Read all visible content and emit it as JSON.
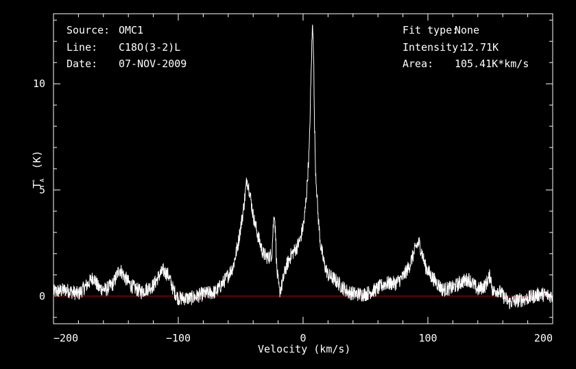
{
  "header_left": {
    "source_label": "Source:",
    "source_value": "OMC1",
    "line_label": "Line:",
    "line_value": "C18O(3-2)L",
    "date_label": "Date:",
    "date_value": "07-NOV-2009"
  },
  "header_right": {
    "fit_label": "Fit type:",
    "fit_value": "None",
    "intensity_label": "Intensity:",
    "intensity_value": "12.71K",
    "area_label": "Area:",
    "area_value": "105.41K*km/s"
  },
  "chart_data": {
    "type": "line",
    "xlabel": "Velocity (km/s)",
    "ylabel_main": "T",
    "ylabel_sub": "A",
    "ylabel_sup": "*",
    "ylabel_unit": "(K)",
    "xlim": [
      -200,
      200
    ],
    "ylim": [
      -1.3,
      13.3
    ],
    "x_ticks": [
      -200,
      -100,
      0,
      100,
      200
    ],
    "x_tick_labels": [
      "−200",
      "−100",
      "0",
      "100",
      "200"
    ],
    "y_ticks": [
      0,
      5,
      10
    ],
    "y_tick_labels": [
      "0",
      "5",
      "10"
    ],
    "grid": false,
    "colors": {
      "background": "#000000",
      "spectrum": "#ffffff",
      "baseline": "#cc0000",
      "frame": "#ffffff"
    },
    "baseline_value": 0,
    "series": [
      {
        "x": [
          -200,
          -190,
          -180,
          -172,
          -168,
          -164,
          -158,
          -152,
          -147,
          -143,
          -138,
          -130,
          -120,
          -115,
          -112,
          -108,
          -104,
          -100,
          -90,
          -80,
          -70,
          -62,
          -56,
          -52,
          -48,
          -45,
          -43,
          -40,
          -36,
          -32,
          -28,
          -25,
          -24,
          -23,
          -22,
          -21,
          -19,
          -17,
          -14,
          -10,
          -5,
          -2,
          1,
          3,
          5,
          6,
          7,
          7.5,
          8,
          8.5,
          9,
          10,
          12,
          14,
          17,
          20,
          25,
          30,
          36,
          42,
          50,
          58,
          66,
          74,
          80,
          85,
          88,
          91,
          93,
          95,
          98,
          102,
          106,
          112,
          120,
          128,
          133,
          140,
          146,
          150,
          152,
          156,
          165,
          180,
          190,
          200
        ],
        "y": [
          0.2,
          0.3,
          0.1,
          0.6,
          0.9,
          0.4,
          0.3,
          0.6,
          1.3,
          0.9,
          0.5,
          0.2,
          0.5,
          1.0,
          1.2,
          1.0,
          0.3,
          -0.1,
          -0.1,
          0.1,
          0.2,
          0.8,
          1.4,
          2.5,
          4.0,
          5.5,
          5.0,
          3.8,
          2.8,
          2.0,
          1.8,
          2.0,
          3.2,
          4.0,
          2.8,
          1.2,
          0.2,
          0.5,
          1.3,
          1.9,
          2.3,
          2.7,
          3.6,
          5.0,
          7.0,
          9.5,
          11.8,
          12.71,
          12.5,
          11.2,
          8.5,
          6.0,
          3.8,
          2.4,
          1.5,
          1.0,
          0.8,
          0.5,
          0.2,
          0.1,
          0.1,
          0.3,
          0.6,
          0.6,
          0.9,
          1.4,
          1.9,
          2.4,
          2.5,
          2.1,
          1.4,
          1.0,
          0.7,
          0.3,
          0.4,
          0.7,
          0.8,
          0.3,
          0.5,
          1.0,
          0.2,
          0.3,
          -0.3,
          -0.1,
          0.1,
          0.0
        ]
      }
    ]
  }
}
